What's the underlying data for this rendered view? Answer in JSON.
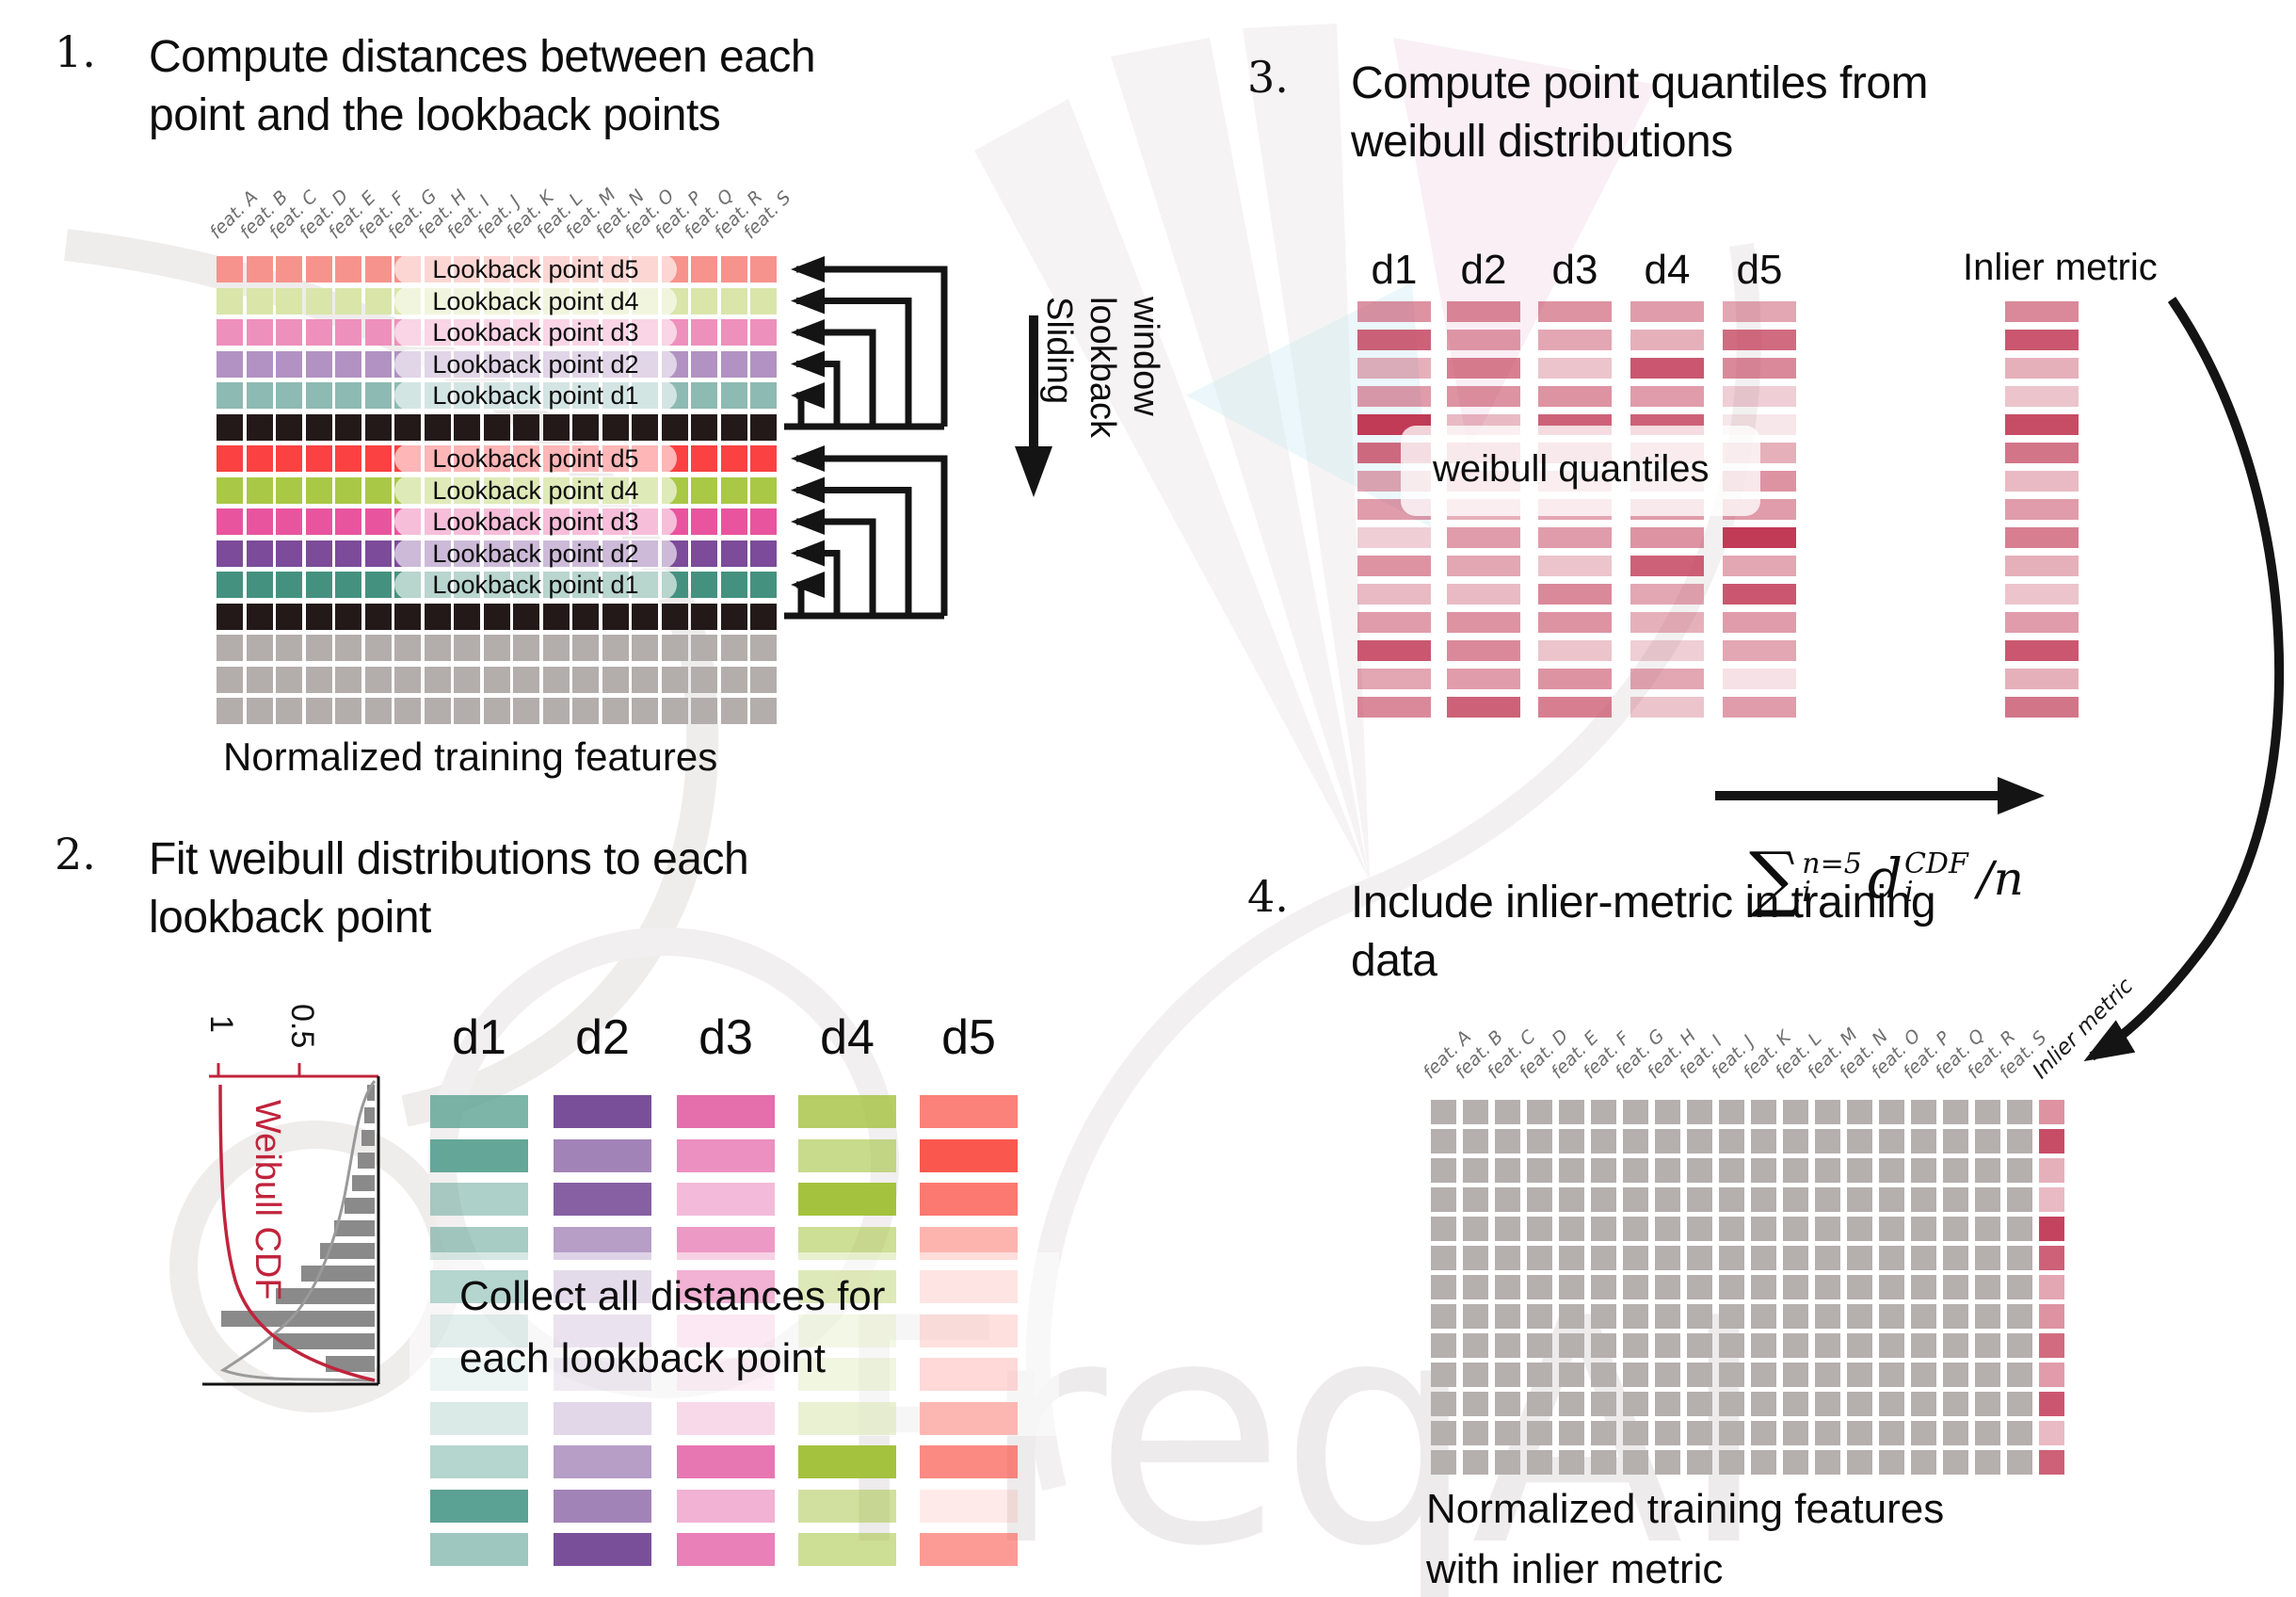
{
  "background": {
    "watermark_text": "FreqAI"
  },
  "palette": {
    "black_row": "#231918",
    "gray_row": "#b3adac",
    "arrow": "#141414",
    "bar_crimson": "#c13a56",
    "weibull_red": "#c0243c",
    "hist_gray": "#8a8a8a"
  },
  "step1": {
    "number": "1.",
    "title": [
      "Compute distances between each",
      "point and the lookback points"
    ],
    "features": [
      "feat. A",
      "feat. B",
      "feat. C",
      "feat. D",
      "feat. E",
      "feat. F",
      "feat. G",
      "feat. H",
      "feat. I",
      "feat. J",
      "feat. K",
      "feat. L",
      "feat. M",
      "feat. N",
      "feat. O",
      "feat. P",
      "feat. Q",
      "feat. R",
      "feat. S"
    ],
    "rows": [
      {
        "color": "#f6938c",
        "label": "Lookback point d5"
      },
      {
        "color": "#d9e5a9",
        "label": "Lookback point d4"
      },
      {
        "color": "#ee90bc",
        "label": "Lookback point d3"
      },
      {
        "color": "#b192c2",
        "label": "Lookback point d2"
      },
      {
        "color": "#8dbab2",
        "label": "Lookback point d1"
      },
      {
        "color": "#231918"
      },
      {
        "color": "#fb4142",
        "label": "Lookback point d5"
      },
      {
        "color": "#a9c845",
        "label": "Lookback point d4"
      },
      {
        "color": "#e9549e",
        "label": "Lookback point d3"
      },
      {
        "color": "#7c4b99",
        "label": "Lookback point d2"
      },
      {
        "color": "#45917f",
        "label": "Lookback point d1"
      },
      {
        "color": "#231918"
      },
      {
        "color": "#b3adac"
      },
      {
        "color": "#b3adac"
      },
      {
        "color": "#b3adac"
      }
    ],
    "caption": "Normalized training features",
    "sliding_window_label": [
      "Sliding",
      "lookback",
      "window"
    ]
  },
  "step2": {
    "number": "2.",
    "title": [
      "Fit weibull distributions to each",
      "lookback point"
    ],
    "plot": {
      "label": "Weibull CDF",
      "tick_labels": [
        "1",
        "0.5"
      ],
      "hist_lengths": [
        8,
        11,
        14,
        18,
        24,
        32,
        43,
        58,
        78,
        105,
        163,
        108,
        52
      ]
    },
    "columns": [
      {
        "name": "d1",
        "color": "#5ca294",
        "alphas": [
          0.8,
          0.95,
          0.5,
          0.55,
          1.0,
          0.4,
          0.25,
          0.5,
          0.45,
          1.0,
          0.6
        ]
      },
      {
        "name": "d2",
        "color": "#7a4f99",
        "alphas": [
          1.0,
          0.7,
          0.9,
          0.55,
          0.45,
          0.35,
          0.25,
          0.5,
          0.55,
          0.7,
          1.0
        ]
      },
      {
        "name": "d3",
        "color": "#e1559f",
        "alphas": [
          0.85,
          0.65,
          0.4,
          0.6,
          1.0,
          0.3,
          0.2,
          0.5,
          0.8,
          0.45,
          0.75
        ]
      },
      {
        "name": "d4",
        "color": "#a4c23e",
        "alphas": [
          0.8,
          0.6,
          1.0,
          0.55,
          0.8,
          0.3,
          0.35,
          0.5,
          1.0,
          0.5,
          0.55
        ]
      },
      {
        "name": "d5",
        "color": "#fa584e",
        "alphas": [
          0.75,
          1.0,
          0.8,
          0.45,
          0.35,
          0.4,
          0.5,
          0.95,
          0.7,
          0.12,
          0.6
        ]
      }
    ],
    "note": [
      "Collect all distances for",
      "each lookback point"
    ]
  },
  "step3": {
    "number": "3.",
    "title": [
      "Compute point quantiles from",
      "weibull distributions"
    ],
    "bar_color": "#c13a56",
    "columns": [
      {
        "name": "d1",
        "alphas": [
          0.55,
          0.8,
          0.4,
          0.5,
          1.0,
          0.75,
          0.45,
          0.5,
          0.25,
          0.55,
          0.35,
          0.5,
          0.85,
          0.45,
          0.6
        ]
      },
      {
        "name": "d2",
        "alphas": [
          0.6,
          0.5,
          0.65,
          0.55,
          0.35,
          0.5,
          0.45,
          0.4,
          0.5,
          0.45,
          0.35,
          0.55,
          0.6,
          0.5,
          0.8
        ]
      },
      {
        "name": "d3",
        "alphas": [
          0.55,
          0.45,
          0.3,
          0.55,
          0.8,
          0.5,
          0.4,
          0.45,
          0.5,
          0.3,
          0.6,
          0.55,
          0.3,
          0.55,
          0.65
        ]
      },
      {
        "name": "d4",
        "alphas": [
          0.5,
          0.4,
          0.85,
          0.5,
          0.8,
          0.45,
          0.35,
          0.5,
          0.55,
          0.8,
          0.45,
          0.4,
          0.25,
          0.45,
          0.3
        ]
      },
      {
        "name": "d5",
        "alphas": [
          0.45,
          0.75,
          0.6,
          0.25,
          0.12,
          0.4,
          0.55,
          0.5,
          1.0,
          0.45,
          0.85,
          0.5,
          0.45,
          0.15,
          0.5
        ]
      }
    ],
    "note": "weibull quantiles",
    "inlier": {
      "label": "Inlier metric",
      "alphas": [
        0.6,
        0.85,
        0.4,
        0.3,
        0.9,
        0.7,
        0.35,
        0.5,
        0.65,
        0.4,
        0.3,
        0.5,
        0.85,
        0.4,
        0.7
      ]
    },
    "formula": {
      "sigma": "∑",
      "sum_sup": "n=5",
      "sum_sub": "i",
      "var": "d",
      "var_sup": "CDF",
      "var_sub": "i",
      "tail": "/n"
    }
  },
  "step4": {
    "number": "4.",
    "title": [
      "Include inlier-metric in training",
      "data"
    ],
    "features": [
      "feat. A",
      "feat. B",
      "feat. C",
      "feat. D",
      "feat. E",
      "feat. F",
      "feat. G",
      "feat. H",
      "feat. I",
      "feat. J",
      "feat. K",
      "feat. L",
      "feat. M",
      "feat. N",
      "feat. O",
      "feat. P",
      "feat. Q",
      "feat. R",
      "feat. S"
    ],
    "inlier_col_label": "Inlier metric",
    "grid_color": "#b5afae",
    "grid_cols": 19,
    "grid_rows": 13,
    "inlier_alphas": [
      0.55,
      0.9,
      0.4,
      0.35,
      0.95,
      0.8,
      0.45,
      0.55,
      0.75,
      0.5,
      0.85,
      0.35,
      0.8
    ],
    "caption": [
      "Normalized training features",
      "with inlier metric"
    ]
  }
}
